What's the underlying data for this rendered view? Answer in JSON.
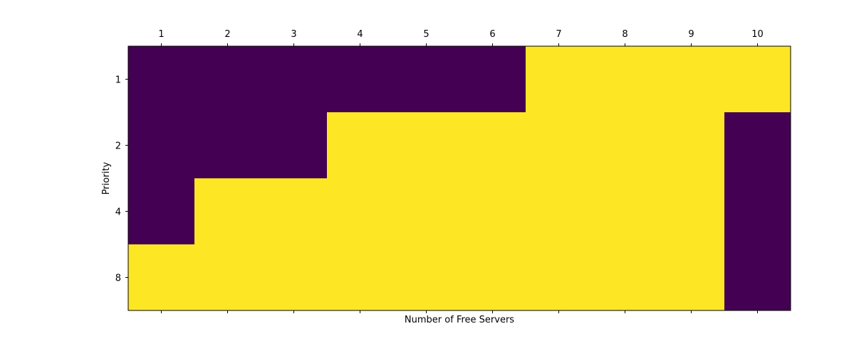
{
  "chart_data": {
    "type": "heatmap",
    "title": "",
    "xlabel": "Number of Free Servers",
    "ylabel": "Priority",
    "x_categories": [
      "1",
      "2",
      "3",
      "4",
      "5",
      "6",
      "7",
      "8",
      "9",
      "10"
    ],
    "y_categories": [
      "1",
      "2",
      "4",
      "8"
    ],
    "x_axis_position": "top",
    "values": [
      [
        0,
        0,
        0,
        0,
        0,
        0,
        1,
        1,
        1,
        1
      ],
      [
        0,
        0,
        0,
        1,
        1,
        1,
        1,
        1,
        1,
        0
      ],
      [
        0,
        1,
        1,
        1,
        1,
        1,
        1,
        1,
        1,
        0
      ],
      [
        1,
        1,
        1,
        1,
        1,
        1,
        1,
        1,
        1,
        0
      ]
    ],
    "colormap": {
      "0": "#440154",
      "1": "#fde725"
    },
    "grid": false,
    "legend": "none"
  }
}
